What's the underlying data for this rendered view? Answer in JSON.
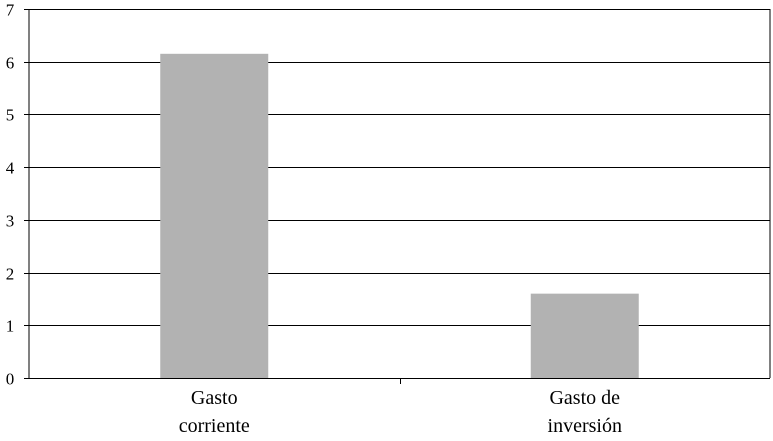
{
  "chart_data": {
    "type": "bar",
    "categories": [
      [
        "Gasto",
        "corriente"
      ],
      [
        "Gasto de",
        "inversión"
      ]
    ],
    "values": [
      6.15,
      1.6
    ],
    "ylim": [
      0,
      7
    ],
    "yticks": [
      "0",
      "1",
      "2",
      "3",
      "4",
      "5",
      "6",
      "7"
    ],
    "grid": true,
    "legend": "none",
    "bar_color": "#b2b2b2",
    "grid_color": "#000000"
  }
}
